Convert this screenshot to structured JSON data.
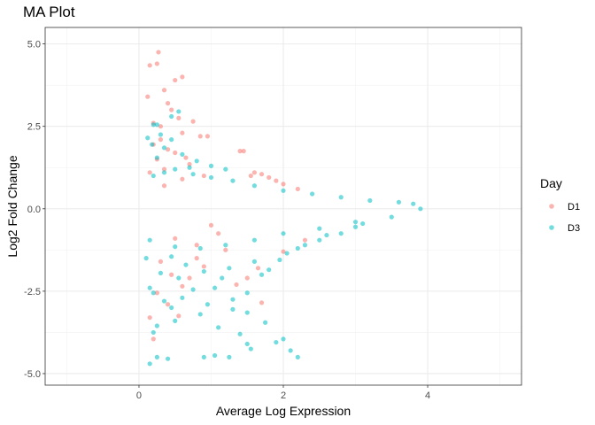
{
  "chart_data": {
    "type": "scatter",
    "title": "MA Plot",
    "xlabel": "Average Log Expression",
    "ylabel": "Log2 Fold Change",
    "xlim": [
      -1.3,
      5.3
    ],
    "ylim": [
      -5.35,
      5.5
    ],
    "x_ticks": [
      0,
      2,
      4
    ],
    "x_tick_labels": [
      "0",
      "2",
      "4"
    ],
    "y_ticks": [
      -5.0,
      -2.5,
      0.0,
      2.5,
      5.0
    ],
    "y_tick_labels": [
      "-5.0",
      "-2.5",
      "0.0",
      "2.5",
      "5.0"
    ],
    "grid": true,
    "legend": {
      "title": "Day",
      "placement": "right",
      "entries": [
        "D1",
        "D3"
      ]
    },
    "colors": {
      "D1": "#F8766D",
      "D3": "#00BFC4"
    },
    "point_alpha": 0.55,
    "series": [
      {
        "name": "D1",
        "points": [
          [
            0.27,
            4.75
          ],
          [
            0.15,
            4.35
          ],
          [
            0.25,
            4.4
          ],
          [
            0.6,
            4.0
          ],
          [
            0.5,
            3.9
          ],
          [
            0.35,
            3.6
          ],
          [
            0.12,
            3.4
          ],
          [
            0.4,
            3.2
          ],
          [
            0.45,
            3.0
          ],
          [
            0.55,
            2.75
          ],
          [
            0.2,
            2.6
          ],
          [
            0.3,
            2.5
          ],
          [
            0.75,
            2.65
          ],
          [
            0.95,
            2.2
          ],
          [
            0.85,
            2.2
          ],
          [
            0.3,
            2.1
          ],
          [
            0.6,
            2.3
          ],
          [
            0.2,
            1.95
          ],
          [
            0.4,
            1.8
          ],
          [
            0.5,
            1.7
          ],
          [
            0.65,
            1.55
          ],
          [
            0.25,
            1.5
          ],
          [
            1.4,
            1.75
          ],
          [
            1.45,
            1.75
          ],
          [
            1.6,
            1.1
          ],
          [
            1.7,
            1.05
          ],
          [
            1.8,
            0.95
          ],
          [
            1.55,
            1.0
          ],
          [
            2.0,
            0.75
          ],
          [
            1.9,
            0.85
          ],
          [
            2.2,
            0.6
          ],
          [
            0.35,
            1.2
          ],
          [
            0.7,
            1.35
          ],
          [
            0.15,
            1.1
          ],
          [
            0.5,
            -0.9
          ],
          [
            0.8,
            -1.1
          ],
          [
            0.3,
            -1.6
          ],
          [
            1.2,
            -1.25
          ],
          [
            1.1,
            -0.75
          ],
          [
            0.45,
            -2.0
          ],
          [
            0.6,
            -2.35
          ],
          [
            0.25,
            -2.55
          ],
          [
            0.7,
            -2.1
          ],
          [
            0.9,
            -1.75
          ],
          [
            1.35,
            -2.3
          ],
          [
            1.5,
            -2.1
          ],
          [
            1.65,
            -1.8
          ],
          [
            2.0,
            -1.3
          ],
          [
            2.3,
            -0.95
          ],
          [
            0.4,
            -2.9
          ],
          [
            0.15,
            -3.3
          ],
          [
            0.55,
            -3.25
          ],
          [
            0.2,
            -3.95
          ],
          [
            1.7,
            -2.85
          ],
          [
            0.8,
            -1.5
          ],
          [
            1.0,
            -0.5
          ],
          [
            0.35,
            0.7
          ],
          [
            0.6,
            0.9
          ],
          [
            0.9,
            1.0
          ]
        ]
      },
      {
        "name": "D3",
        "points": [
          [
            0.2,
            2.55
          ],
          [
            0.25,
            2.55
          ],
          [
            0.45,
            2.8
          ],
          [
            0.55,
            2.95
          ],
          [
            0.12,
            2.15
          ],
          [
            0.3,
            2.25
          ],
          [
            0.45,
            2.1
          ],
          [
            0.18,
            1.95
          ],
          [
            0.35,
            1.85
          ],
          [
            0.6,
            1.65
          ],
          [
            0.8,
            1.45
          ],
          [
            1.0,
            1.3
          ],
          [
            1.2,
            1.2
          ],
          [
            0.25,
            1.55
          ],
          [
            0.7,
            1.25
          ],
          [
            0.2,
            -2.55
          ],
          [
            0.15,
            -2.4
          ],
          [
            0.35,
            -2.8
          ],
          [
            0.45,
            -3.0
          ],
          [
            0.6,
            -2.7
          ],
          [
            0.75,
            -2.45
          ],
          [
            0.95,
            -2.9
          ],
          [
            1.05,
            -2.4
          ],
          [
            1.15,
            -2.1
          ],
          [
            1.3,
            -2.75
          ],
          [
            1.5,
            -2.55
          ],
          [
            1.7,
            -2.0
          ],
          [
            1.8,
            -1.85
          ],
          [
            1.95,
            -1.55
          ],
          [
            2.2,
            -1.2
          ],
          [
            2.5,
            -0.95
          ],
          [
            2.8,
            -0.75
          ],
          [
            3.0,
            -0.55
          ],
          [
            1.3,
            -3.05
          ],
          [
            1.1,
            -3.6
          ],
          [
            1.5,
            -3.15
          ],
          [
            1.75,
            -3.45
          ],
          [
            0.2,
            -3.75
          ],
          [
            0.25,
            -3.55
          ],
          [
            0.5,
            -3.4
          ],
          [
            0.85,
            -3.2
          ],
          [
            1.4,
            -3.8
          ],
          [
            1.5,
            -4.1
          ],
          [
            1.55,
            -4.25
          ],
          [
            1.9,
            -4.05
          ],
          [
            2.0,
            -3.95
          ],
          [
            2.1,
            -4.3
          ],
          [
            2.2,
            -4.5
          ],
          [
            1.25,
            -4.5
          ],
          [
            0.9,
            -4.5
          ],
          [
            0.25,
            -4.5
          ],
          [
            0.4,
            -4.55
          ],
          [
            0.15,
            -4.7
          ],
          [
            1.05,
            -4.45
          ],
          [
            0.55,
            -2.1
          ],
          [
            0.3,
            -1.95
          ],
          [
            0.65,
            -1.7
          ],
          [
            0.1,
            -1.5
          ],
          [
            0.45,
            -1.45
          ],
          [
            0.9,
            -1.9
          ],
          [
            1.25,
            -1.8
          ],
          [
            1.6,
            -1.6
          ],
          [
            2.05,
            -1.35
          ],
          [
            2.3,
            -1.1
          ],
          [
            2.6,
            -0.8
          ],
          [
            3.1,
            -0.45
          ],
          [
            3.5,
            -0.25
          ],
          [
            3.8,
            0.15
          ],
          [
            3.9,
            0.0
          ],
          [
            3.6,
            0.2
          ],
          [
            0.2,
            1.0
          ],
          [
            0.35,
            1.1
          ],
          [
            0.5,
            1.2
          ],
          [
            0.75,
            1.05
          ],
          [
            1.0,
            0.95
          ],
          [
            1.3,
            0.85
          ],
          [
            1.6,
            0.7
          ],
          [
            2.0,
            0.55
          ],
          [
            2.4,
            0.45
          ],
          [
            2.8,
            0.35
          ],
          [
            3.2,
            0.25
          ],
          [
            0.15,
            -0.95
          ],
          [
            0.5,
            -1.15
          ],
          [
            0.85,
            -1.2
          ],
          [
            1.2,
            -1.1
          ],
          [
            1.6,
            -0.95
          ],
          [
            2.0,
            -0.75
          ],
          [
            2.5,
            -0.6
          ],
          [
            3.0,
            -0.4
          ]
        ]
      }
    ]
  }
}
